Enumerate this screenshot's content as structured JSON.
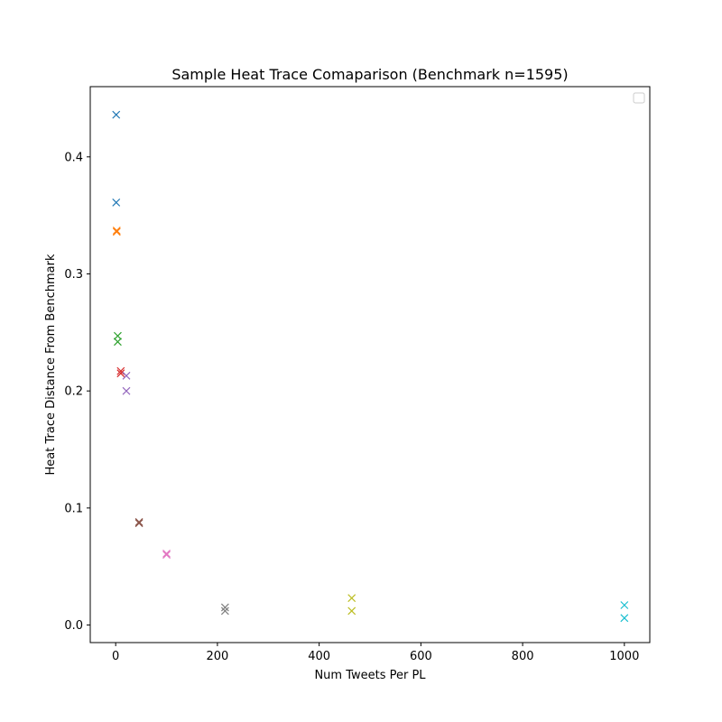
{
  "chart_data": {
    "type": "scatter",
    "title": "Sample Heat Trace Comaparison (Benchmark n=1595)",
    "xlabel": "Num Tweets Per PL",
    "ylabel": "Heat Trace Distance From Benchmark",
    "xlim": [
      -50,
      1050
    ],
    "ylim": [
      -0.015,
      0.46
    ],
    "xticks": [
      "0",
      "200",
      "400",
      "600",
      "800",
      "1000"
    ],
    "yticks": [
      "0.0",
      "0.1",
      "0.2",
      "0.3",
      "0.4"
    ],
    "marker": "x",
    "legend": {
      "placement": "upper-right",
      "entries": []
    },
    "grid": false,
    "series": [
      {
        "color": "#1f77b4",
        "points": [
          {
            "x": 1,
            "y": 0.436
          },
          {
            "x": 1,
            "y": 0.361
          }
        ]
      },
      {
        "color": "#ff7f0e",
        "points": [
          {
            "x": 2,
            "y": 0.337
          },
          {
            "x": 2,
            "y": 0.336
          }
        ]
      },
      {
        "color": "#2ca02c",
        "points": [
          {
            "x": 4,
            "y": 0.247
          },
          {
            "x": 4,
            "y": 0.242
          }
        ]
      },
      {
        "color": "#d62728",
        "points": [
          {
            "x": 10,
            "y": 0.217
          },
          {
            "x": 10,
            "y": 0.215
          }
        ]
      },
      {
        "color": "#9467bd",
        "points": [
          {
            "x": 21,
            "y": 0.213
          },
          {
            "x": 21,
            "y": 0.2
          }
        ]
      },
      {
        "color": "#8c564b",
        "points": [
          {
            "x": 46,
            "y": 0.088
          },
          {
            "x": 46,
            "y": 0.087
          }
        ]
      },
      {
        "color": "#e377c2",
        "points": [
          {
            "x": 100,
            "y": 0.061
          },
          {
            "x": 100,
            "y": 0.06
          }
        ]
      },
      {
        "color": "#7f7f7f",
        "points": [
          {
            "x": 215,
            "y": 0.015
          },
          {
            "x": 215,
            "y": 0.012
          }
        ]
      },
      {
        "color": "#bcbd22",
        "points": [
          {
            "x": 464,
            "y": 0.023
          },
          {
            "x": 464,
            "y": 0.012
          }
        ]
      },
      {
        "color": "#17becf",
        "points": [
          {
            "x": 1000,
            "y": 0.017
          },
          {
            "x": 1000,
            "y": 0.006
          }
        ]
      }
    ]
  }
}
